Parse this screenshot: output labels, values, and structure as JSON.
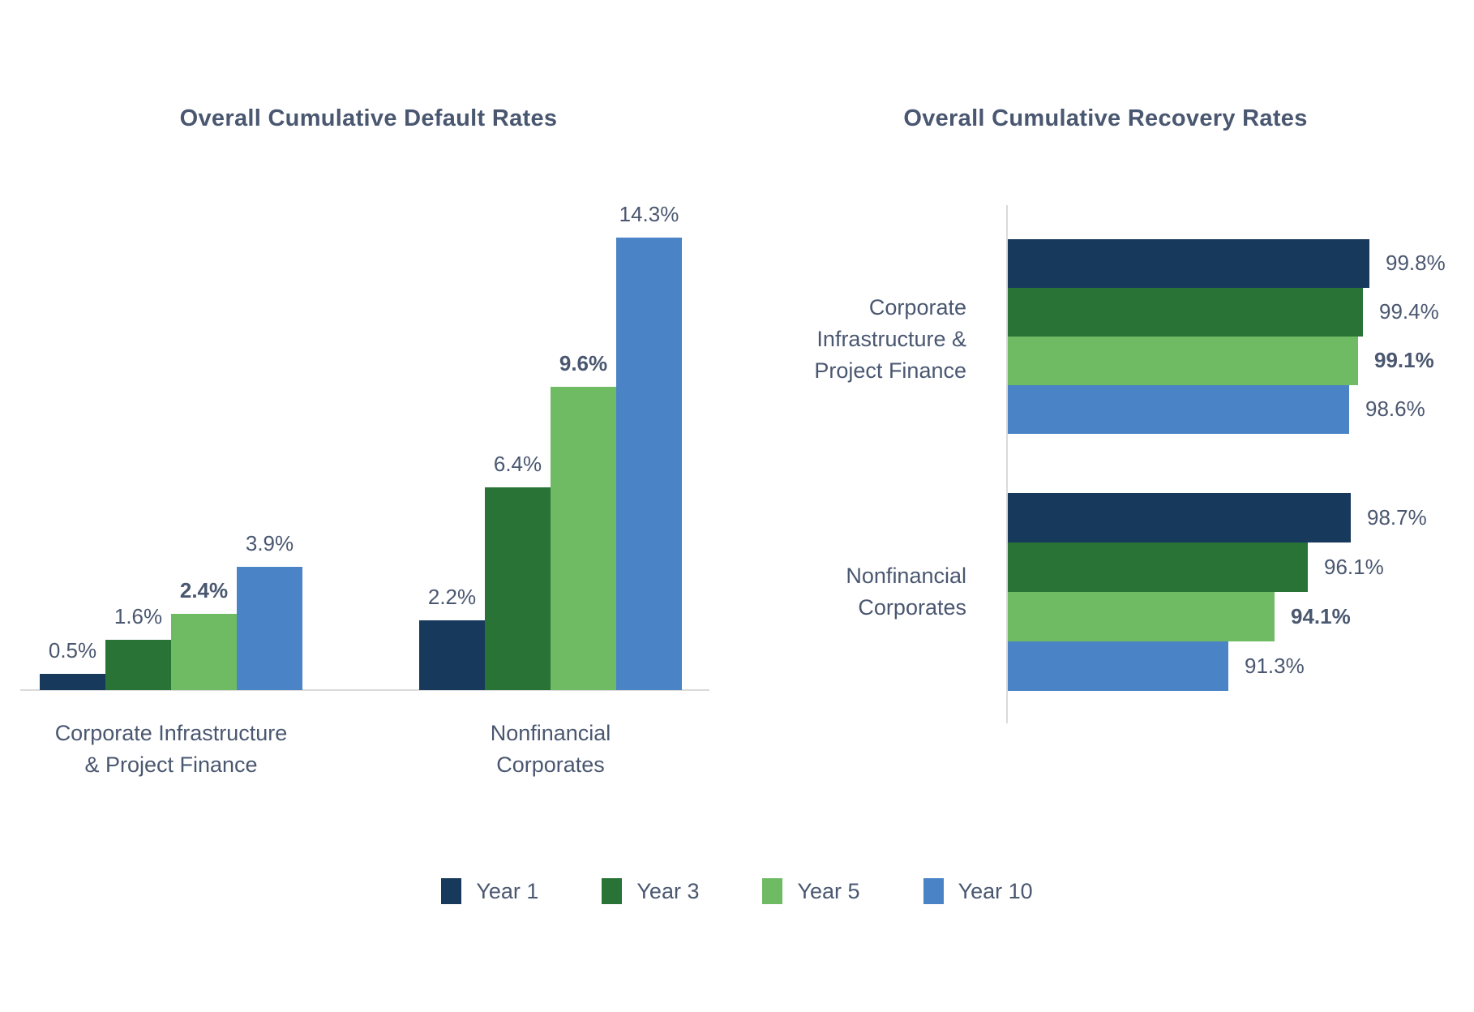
{
  "palette": {
    "text": "#4A5770",
    "axis": "#DADADA",
    "background": "#FFFFFF",
    "year1": "#17395C",
    "year3": "#287335",
    "year5": "#6FBB64",
    "year10": "#4A83C6"
  },
  "legend": {
    "items": [
      {
        "label": "Year 1",
        "color": "#17395C"
      },
      {
        "label": "Year 3",
        "color": "#287335"
      },
      {
        "label": "Year 5",
        "color": "#6FBB64"
      },
      {
        "label": "Year 10",
        "color": "#4A83C6"
      }
    ]
  },
  "chart_data": [
    {
      "type": "bar",
      "orientation": "vertical",
      "title": "Overall Cumulative Default Rates",
      "unit": "%",
      "categories": [
        "Corporate Infrastructure & Project Finance",
        "Nonfinancial Corporates"
      ],
      "category_lines": [
        [
          "Corporate Infrastructure",
          "& Project Finance"
        ],
        [
          "Nonfinancial",
          "Corporates"
        ]
      ],
      "series": [
        {
          "name": "Year 1",
          "values": [
            0.5,
            2.2
          ]
        },
        {
          "name": "Year 3",
          "values": [
            1.6,
            6.4
          ]
        },
        {
          "name": "Year 5",
          "values": [
            2.4,
            9.6
          ]
        },
        {
          "name": "Year 10",
          "values": [
            3.9,
            14.3
          ]
        }
      ],
      "value_labels": [
        [
          "0.5%",
          "1.6%",
          "2.4%",
          "3.9%"
        ],
        [
          "2.2%",
          "6.4%",
          "9.6%",
          "14.3%"
        ]
      ],
      "bold_series_index": 2,
      "ylim": [
        0,
        15
      ],
      "grid": false,
      "legend_position": "bottom-shared"
    },
    {
      "type": "bar",
      "orientation": "horizontal",
      "title": "Overall Cumulative Recovery Rates",
      "unit": "%",
      "categories": [
        "Corporate Infrastructure & Project Finance",
        "Nonfinancial Corporates"
      ],
      "category_lines": [
        [
          "Corporate",
          "Infrastructure &",
          "Project Finance"
        ],
        [
          "Nonfinancial",
          "Corporates"
        ]
      ],
      "series": [
        {
          "name": "Year 1",
          "values": [
            99.8,
            98.7
          ]
        },
        {
          "name": "Year 3",
          "values": [
            99.4,
            96.1
          ]
        },
        {
          "name": "Year 5",
          "values": [
            99.1,
            94.1
          ]
        },
        {
          "name": "Year 10",
          "values": [
            98.6,
            91.3
          ]
        }
      ],
      "value_labels": [
        [
          "99.8%",
          "99.4%",
          "99.1%",
          "98.6%"
        ],
        [
          "98.7%",
          "96.1%",
          "94.1%",
          "91.3%"
        ]
      ],
      "bold_series_index": 2,
      "xlim": [
        78,
        100
      ],
      "grid": false,
      "legend_position": "bottom-shared"
    }
  ]
}
